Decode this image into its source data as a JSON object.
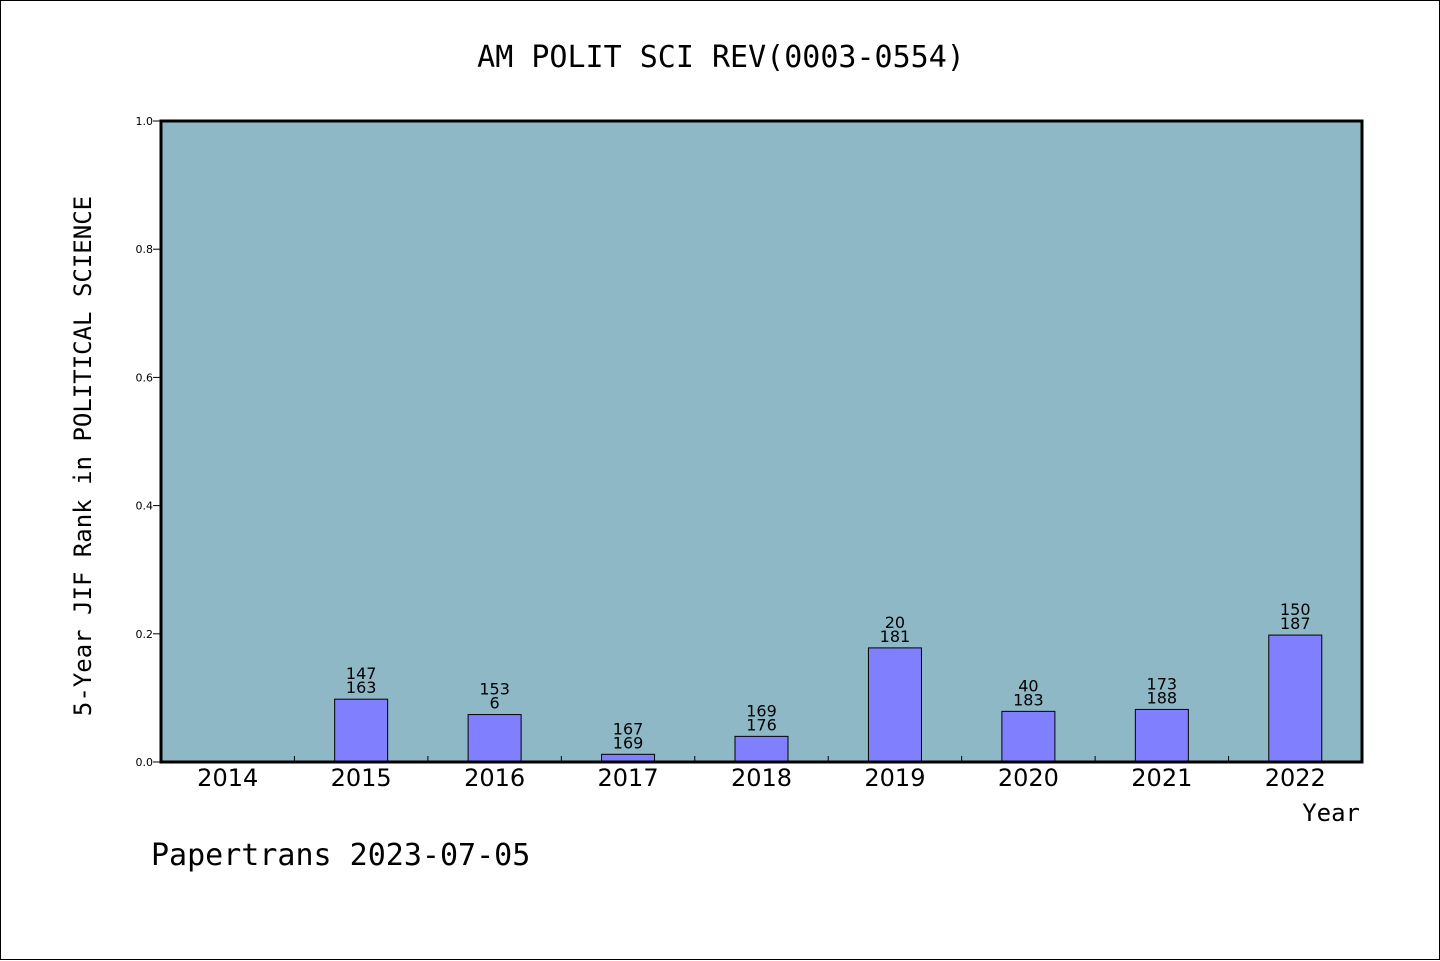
{
  "chart_data": {
    "type": "bar",
    "title": "AM POLIT SCI REV(0003-0554)",
    "xlabel": "Year",
    "ylabel": "5-Year JIF Rank in POLITICAL SCIENCE",
    "ylim": [
      0,
      1.0
    ],
    "yticks": [
      "0.0",
      "0.2",
      "0.4",
      "0.6",
      "0.8",
      "1.0"
    ],
    "grid": false,
    "background_color": "#8fb8c6",
    "bar_color": "#8080ff",
    "categories": [
      "2014",
      "2015",
      "2016",
      "2017",
      "2018",
      "2019",
      "2020",
      "2021",
      "2022"
    ],
    "values": [
      null,
      0.098,
      0.074,
      0.012,
      0.04,
      0.178,
      0.079,
      0.082,
      0.198
    ],
    "labels_top": [
      "",
      "147",
      "153",
      "167",
      "169",
      "20",
      "40",
      "173",
      "150"
    ],
    "labels_bottom": [
      "",
      "163",
      "6",
      "169",
      "176",
      "181",
      "183",
      "188",
      "187"
    ]
  },
  "footer": "Papertrans 2023-07-05"
}
